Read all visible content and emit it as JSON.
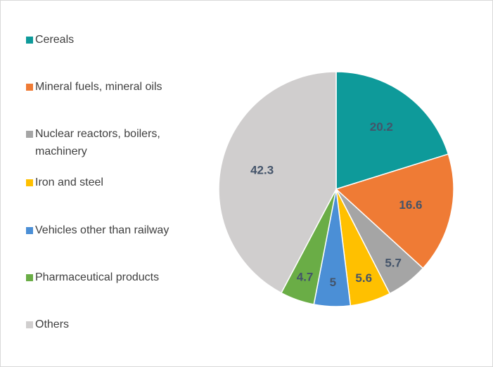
{
  "chart_data": {
    "type": "pie",
    "categories": [
      "Cereals",
      "Mineral fuels, mineral oils",
      "Nuclear reactors, boilers, machinery",
      "Iron and steel",
      "Vehicles other than railway",
      "Pharmaceutical products",
      "Others"
    ],
    "values": [
      20.2,
      16.6,
      5.7,
      5.6,
      5,
      4.7,
      42.3
    ],
    "colors": [
      "#0e9a9a",
      "#ef7b35",
      "#a5a5a5",
      "#ffc000",
      "#4b8fd6",
      "#6aad46",
      "#d0cece"
    ],
    "legend": "left"
  }
}
